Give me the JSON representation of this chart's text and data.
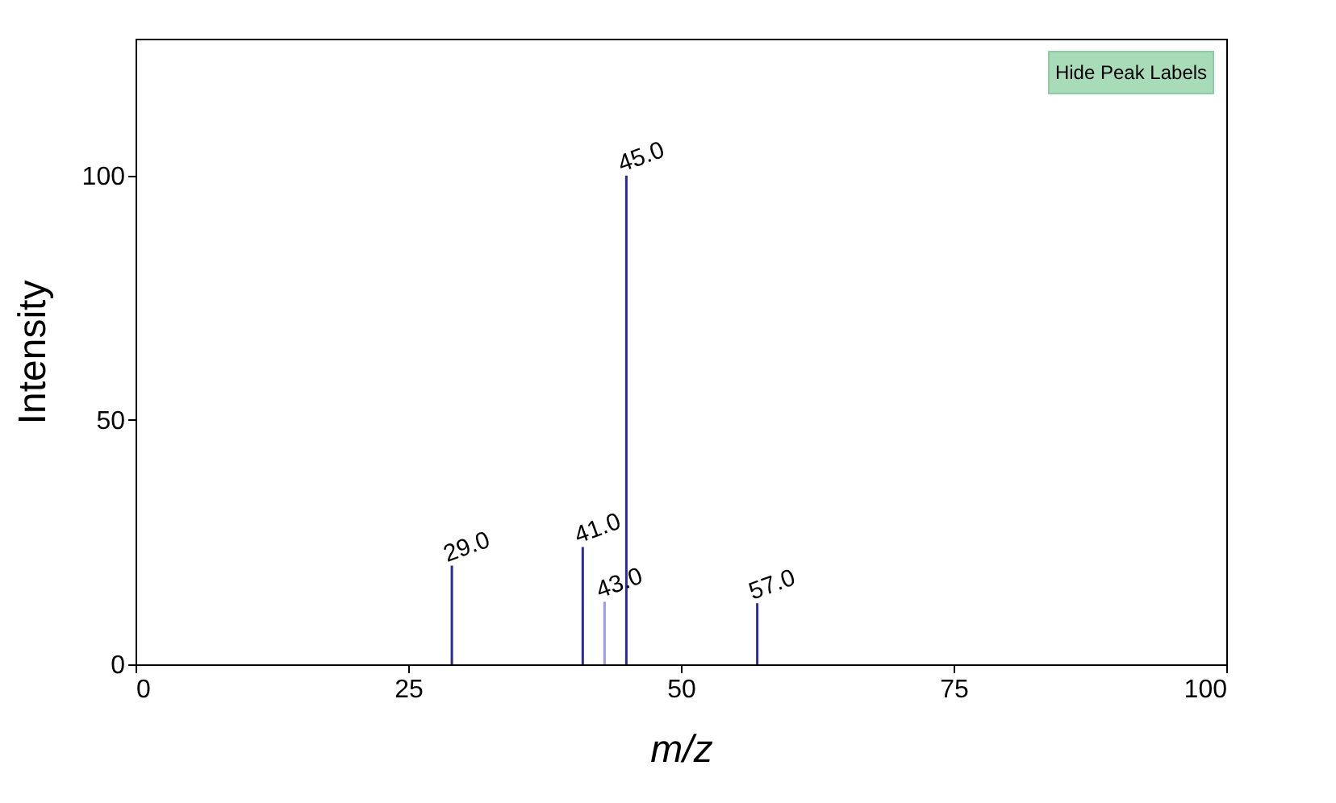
{
  "chart_data": {
    "type": "bar",
    "xlabel": "m/z",
    "ylabel": "Intensity",
    "x": [
      29,
      41,
      43,
      45,
      57
    ],
    "values": [
      20.2,
      24.0,
      12.8,
      100,
      12.5
    ],
    "colors": [
      "#2b2b9b",
      "#2b2b9b",
      "#9a9ae6",
      "#2b2b9b",
      "#2b2b9b"
    ],
    "xlim": [
      0,
      100
    ],
    "xticks": [
      0,
      25,
      50,
      75,
      100
    ],
    "ylim": [
      0,
      128
    ],
    "yticks": [
      0,
      50,
      100
    ],
    "grid": false,
    "annotations": [
      {
        "text": "29.0",
        "x": 29,
        "y": 20.2
      },
      {
        "text": "41.0",
        "x": 41,
        "y": 24.0
      },
      {
        "text": "43.0",
        "x": 43,
        "y": 12.8
      },
      {
        "text": "45.0",
        "x": 45,
        "y": 100
      },
      {
        "text": "57.0",
        "x": 57,
        "y": 12.5
      },
      "Hide Peak Labels"
    ]
  }
}
